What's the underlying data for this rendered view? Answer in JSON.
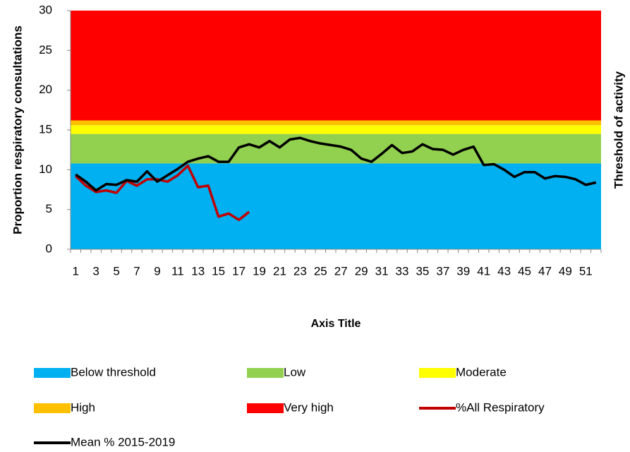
{
  "chart_data": {
    "type": "area-line",
    "y_label": "Proportion respiratory consultations",
    "y2_label": "Threshold of activity",
    "x_label": "Axis Title",
    "categories": [
      1,
      null,
      3,
      null,
      5,
      null,
      7,
      null,
      9,
      null,
      11,
      null,
      13,
      null,
      15,
      null,
      17,
      null,
      19,
      null,
      21,
      null,
      23,
      null,
      25,
      null,
      27,
      null,
      29,
      null,
      31,
      null,
      33,
      null,
      35,
      null,
      37,
      null,
      39,
      null,
      41,
      null,
      43,
      null,
      45,
      null,
      47,
      null,
      49,
      null,
      51,
      null
    ],
    "ylim": [
      0,
      30
    ],
    "yticks": [
      0,
      5,
      10,
      15,
      20,
      25,
      30
    ],
    "series": [
      {
        "name": "Below threshold",
        "kind": "area",
        "color": "#00b0f0",
        "values": [
          10.8,
          10.8,
          10.8,
          10.8,
          10.8,
          10.8,
          10.8,
          10.8,
          10.8,
          10.8,
          10.8,
          10.8,
          10.8,
          10.8,
          10.8,
          10.8,
          10.8,
          10.8,
          10.8,
          10.8,
          10.8,
          10.8,
          10.8,
          10.8,
          10.8,
          10.8,
          10.8,
          10.8,
          10.8,
          10.8,
          10.8,
          10.8,
          10.8,
          10.8,
          10.8,
          10.8,
          10.8,
          10.8,
          10.8,
          10.8,
          10.8,
          10.8,
          10.8,
          10.8,
          10.8,
          10.8,
          10.8,
          10.8,
          10.8,
          10.8,
          10.8,
          10.8
        ]
      },
      {
        "name": "Low",
        "kind": "area",
        "color": "#92d050",
        "values": [
          3.7,
          3.7,
          3.7,
          3.7,
          3.7,
          3.7,
          3.7,
          3.7,
          3.7,
          3.7,
          3.7,
          3.7,
          3.7,
          3.7,
          3.7,
          3.7,
          3.7,
          3.7,
          3.7,
          3.7,
          3.7,
          3.7,
          3.7,
          3.7,
          3.7,
          3.7,
          3.7,
          3.7,
          3.7,
          3.7,
          3.7,
          3.7,
          3.7,
          3.7,
          3.7,
          3.7,
          3.7,
          3.7,
          3.7,
          3.7,
          3.7,
          3.7,
          3.7,
          3.7,
          3.7,
          3.7,
          3.7,
          3.7,
          3.7,
          3.7,
          3.7,
          3.7
        ]
      },
      {
        "name": "Moderate",
        "kind": "area",
        "color": "#ffff00",
        "values": [
          1.1,
          1.1,
          1.1,
          1.1,
          1.1,
          1.1,
          1.1,
          1.1,
          1.1,
          1.1,
          1.1,
          1.1,
          1.1,
          1.1,
          1.1,
          1.1,
          1.1,
          1.1,
          1.1,
          1.1,
          1.1,
          1.1,
          1.1,
          1.1,
          1.1,
          1.1,
          1.1,
          1.1,
          1.1,
          1.1,
          1.1,
          1.1,
          1.1,
          1.1,
          1.1,
          1.1,
          1.1,
          1.1,
          1.1,
          1.1,
          1.1,
          1.1,
          1.1,
          1.1,
          1.1,
          1.1,
          1.1,
          1.1,
          1.1,
          1.1,
          1.1,
          1.1
        ]
      },
      {
        "name": "High",
        "kind": "area",
        "color": "#ffc000",
        "values": [
          0.6,
          0.6,
          0.6,
          0.6,
          0.6,
          0.6,
          0.6,
          0.6,
          0.6,
          0.6,
          0.6,
          0.6,
          0.6,
          0.6,
          0.6,
          0.6,
          0.6,
          0.6,
          0.6,
          0.6,
          0.6,
          0.6,
          0.6,
          0.6,
          0.6,
          0.6,
          0.6,
          0.6,
          0.6,
          0.6,
          0.6,
          0.6,
          0.6,
          0.6,
          0.6,
          0.6,
          0.6,
          0.6,
          0.6,
          0.6,
          0.6,
          0.6,
          0.6,
          0.6,
          0.6,
          0.6,
          0.6,
          0.6,
          0.6,
          0.6,
          0.6,
          0.6
        ]
      },
      {
        "name": "Very high",
        "kind": "area",
        "color": "#ff0000",
        "values": [
          13.8,
          13.8,
          13.8,
          13.8,
          13.8,
          13.8,
          13.8,
          13.8,
          13.8,
          13.8,
          13.8,
          13.8,
          13.8,
          13.8,
          13.8,
          13.8,
          13.8,
          13.8,
          13.8,
          13.8,
          13.8,
          13.8,
          13.8,
          13.8,
          13.8,
          13.8,
          13.8,
          13.8,
          13.8,
          13.8,
          13.8,
          13.8,
          13.8,
          13.8,
          13.8,
          13.8,
          13.8,
          13.8,
          13.8,
          13.8,
          13.8,
          13.8,
          13.8,
          13.8,
          13.8,
          13.8,
          13.8,
          13.8,
          13.8,
          13.8,
          13.8,
          13.8
        ]
      },
      {
        "name": "%All Respiratory",
        "kind": "line",
        "color": "#c00000",
        "values": [
          9.2,
          8.0,
          7.2,
          7.4,
          7.1,
          8.6,
          8.0,
          8.8,
          8.8,
          8.5,
          9.3,
          10.5,
          7.8,
          8.0,
          4.1,
          4.5,
          3.7,
          4.7,
          null,
          null,
          null,
          null,
          null,
          null,
          null,
          null,
          null,
          null,
          null,
          null,
          null,
          null,
          null,
          null,
          null,
          null,
          null,
          null,
          null,
          null,
          null,
          null,
          null,
          null,
          null,
          null,
          null,
          null,
          null,
          null,
          null,
          null
        ]
      },
      {
        "name": "Mean % 2015-2019",
        "kind": "line",
        "color": "#000000",
        "values": [
          9.4,
          8.5,
          7.4,
          8.2,
          8.1,
          8.7,
          8.5,
          9.8,
          8.5,
          9.3,
          10.1,
          11.0,
          11.4,
          11.7,
          11.0,
          11.0,
          12.8,
          13.2,
          12.8,
          13.6,
          12.8,
          13.8,
          14.0,
          13.6,
          13.3,
          13.1,
          12.9,
          12.5,
          11.4,
          11.0,
          12.0,
          13.1,
          12.1,
          12.3,
          13.2,
          12.6,
          12.5,
          11.9,
          12.5,
          12.9,
          10.6,
          10.7,
          10.0,
          9.1,
          9.7,
          9.7,
          8.9,
          9.2,
          9.1,
          8.8,
          8.1,
          8.4
        ]
      }
    ]
  }
}
